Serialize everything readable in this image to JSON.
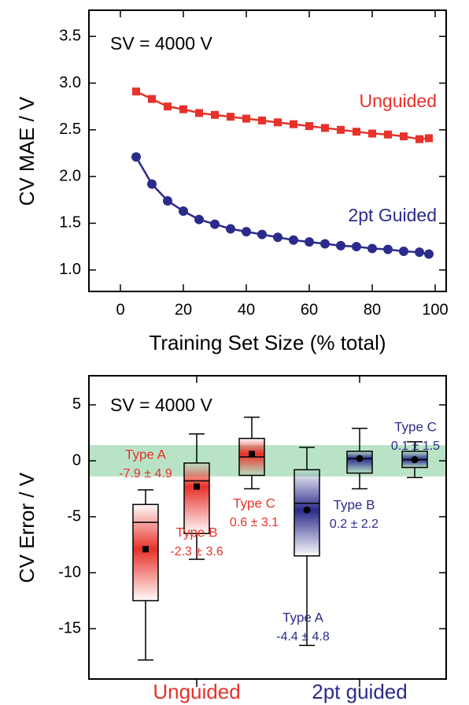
{
  "chart_data": [
    {
      "type": "line",
      "xlabel": "Training Set Size (% total)",
      "ylabel": "CV MAE / V",
      "annotations": [
        "SV = 4000 V"
      ],
      "x": [
        5,
        10,
        15,
        20,
        25,
        30,
        35,
        40,
        45,
        50,
        55,
        60,
        65,
        70,
        75,
        80,
        85,
        90,
        95,
        98
      ],
      "series": [
        {
          "name": "Unguided",
          "color": "#e8312a",
          "marker": "square",
          "values": [
            2.91,
            2.83,
            2.75,
            2.72,
            2.68,
            2.66,
            2.64,
            2.62,
            2.6,
            2.58,
            2.56,
            2.54,
            2.52,
            2.5,
            2.48,
            2.46,
            2.45,
            2.43,
            2.4,
            2.41
          ]
        },
        {
          "name": "2pt Guided",
          "color": "#2b2b8c",
          "marker": "circle",
          "values": [
            2.21,
            1.92,
            1.74,
            1.63,
            1.54,
            1.49,
            1.44,
            1.41,
            1.38,
            1.35,
            1.32,
            1.3,
            1.28,
            1.26,
            1.25,
            1.23,
            1.22,
            1.2,
            1.19,
            1.17
          ]
        }
      ],
      "xlim": [
        -10,
        103.5
      ],
      "xticks": [
        0,
        20,
        40,
        60,
        80,
        100
      ],
      "ylim": [
        0.77,
        3.78
      ],
      "yticks": [
        {
          "value": 1,
          "label": "1.0"
        },
        1.5,
        {
          "value": 2,
          "label": "2.0"
        },
        2.5,
        {
          "value": 3,
          "label": "3.0"
        },
        3.5
      ]
    },
    {
      "type": "box",
      "ylabel": "CV Error / V",
      "annotations": [
        "SV = 4000 V"
      ],
      "groups": [
        {
          "name": "Unguided",
          "color": "#e8312a"
        },
        {
          "name": "2pt guided",
          "color": "#2b2b8c"
        }
      ],
      "boxes": [
        {
          "name": "Type A",
          "label": "-7.9 ± 4.9",
          "color": "#e8312a",
          "marker": "square",
          "whislo": -17.8,
          "q1": -12.5,
          "med": -5.5,
          "q3": -3.9,
          "whishi": -2.6,
          "mean": -7.9
        },
        {
          "name": "Type B",
          "label": "-2.3 ± 3.6",
          "color": "#e8312a",
          "marker": "square",
          "whislo": -8.8,
          "q1": -6.5,
          "med": -1.8,
          "q3": -0.2,
          "whishi": 2.4,
          "mean": -2.3
        },
        {
          "name": "Type C",
          "label": "0.6 ± 3.1",
          "color": "#e8312a",
          "marker": "square",
          "whislo": -2.5,
          "q1": -1.3,
          "med": 0.35,
          "q3": 2.0,
          "whishi": 3.9,
          "mean": 0.6
        },
        {
          "name": "Type A",
          "label": "-4.4 ± 4.8",
          "color": "#2b2b8c",
          "marker": "circle",
          "whislo": -16.5,
          "q1": -8.5,
          "med": -3.8,
          "q3": -0.8,
          "whishi": 1.2,
          "mean": -4.4
        },
        {
          "name": "Type B",
          "label": "0.2 ± 2.2",
          "color": "#2b2b8c",
          "marker": "circle",
          "whislo": -2.5,
          "q1": -1.1,
          "med": 0.2,
          "q3": 0.85,
          "whishi": 2.9,
          "mean": 0.2
        },
        {
          "name": "Type C",
          "label": "0.1 ± 1.5",
          "color": "#2b2b8c",
          "marker": "circle",
          "whislo": -1.5,
          "q1": -0.6,
          "med": 0.1,
          "q3": 0.85,
          "whishi": 1.7,
          "mean": 0.1
        }
      ],
      "band": [
        -1.4,
        1.4
      ],
      "band_color": "#b9e3c6",
      "ylim": [
        -19.5,
        7.6
      ],
      "yticks": [
        5,
        0,
        -5,
        -10,
        -15
      ]
    }
  ]
}
